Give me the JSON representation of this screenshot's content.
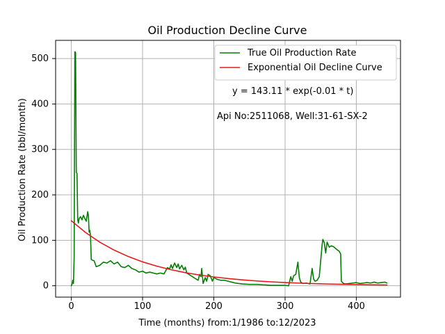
{
  "chart_data": {
    "type": "line",
    "title": "Oil Production Decline Curve",
    "xlabel": "Time (months) from:1/1986 to:12/2023",
    "ylabel": "Oil Production Rate (bbl/month)",
    "xlim": [
      -22,
      462
    ],
    "ylim": [
      -25,
      540
    ],
    "x_ticks": [
      0,
      100,
      200,
      300,
      400
    ],
    "y_ticks": [
      0,
      100,
      200,
      300,
      400,
      500
    ],
    "x_tick_labels": [
      "0",
      "100",
      "200",
      "300",
      "400"
    ],
    "y_tick_labels": [
      "0",
      "100",
      "200",
      "300",
      "400",
      "500"
    ],
    "grid": true,
    "legend_position": "top-right",
    "annotations": {
      "equation": "y = 143.11 * exp(-0.01 * t)",
      "well": "Api No:2511068, Well:31-61-SX-2"
    },
    "series": [
      {
        "name": "True Oil Production Rate",
        "color": "#008000",
        "points": [
          [
            0,
            0
          ],
          [
            1,
            3
          ],
          [
            2,
            12
          ],
          [
            3,
            5
          ],
          [
            4,
            60
          ],
          [
            5,
            515
          ],
          [
            6,
            513
          ],
          [
            7,
            250
          ],
          [
            8,
            247
          ],
          [
            9,
            145
          ],
          [
            10,
            138
          ],
          [
            11,
            148
          ],
          [
            13,
            152
          ],
          [
            15,
            145
          ],
          [
            17,
            155
          ],
          [
            19,
            148
          ],
          [
            21,
            142
          ],
          [
            23,
            163
          ],
          [
            24,
            155
          ],
          [
            25,
            118
          ],
          [
            26,
            122
          ],
          [
            27,
            108
          ],
          [
            28,
            58
          ],
          [
            30,
            56
          ],
          [
            32,
            55
          ],
          [
            35,
            42
          ],
          [
            40,
            45
          ],
          [
            45,
            52
          ],
          [
            50,
            50
          ],
          [
            55,
            55
          ],
          [
            60,
            48
          ],
          [
            65,
            52
          ],
          [
            70,
            42
          ],
          [
            75,
            40
          ],
          [
            80,
            45
          ],
          [
            85,
            38
          ],
          [
            90,
            35
          ],
          [
            95,
            30
          ],
          [
            100,
            32
          ],
          [
            105,
            28
          ],
          [
            110,
            30
          ],
          [
            115,
            28
          ],
          [
            120,
            26
          ],
          [
            125,
            28
          ],
          [
            130,
            26
          ],
          [
            135,
            40
          ],
          [
            138,
            37
          ],
          [
            140,
            46
          ],
          [
            142,
            38
          ],
          [
            145,
            50
          ],
          [
            148,
            40
          ],
          [
            150,
            48
          ],
          [
            152,
            37
          ],
          [
            155,
            45
          ],
          [
            158,
            35
          ],
          [
            160,
            41
          ],
          [
            162,
            28
          ],
          [
            165,
            25
          ],
          [
            168,
            22
          ],
          [
            170,
            20
          ],
          [
            172,
            18
          ],
          [
            175,
            15
          ],
          [
            178,
            12
          ],
          [
            180,
            25
          ],
          [
            182,
            20
          ],
          [
            183,
            38
          ],
          [
            185,
            5
          ],
          [
            188,
            18
          ],
          [
            190,
            10
          ],
          [
            192,
            25
          ],
          [
            195,
            22
          ],
          [
            198,
            10
          ],
          [
            200,
            18
          ],
          [
            205,
            14
          ],
          [
            210,
            12
          ],
          [
            215,
            12
          ],
          [
            220,
            10
          ],
          [
            225,
            8
          ],
          [
            230,
            6
          ],
          [
            235,
            5
          ],
          [
            240,
            4
          ],
          [
            250,
            3
          ],
          [
            260,
            3
          ],
          [
            270,
            2
          ],
          [
            280,
            1
          ],
          [
            290,
            1
          ],
          [
            300,
            1
          ],
          [
            305,
            0
          ],
          [
            308,
            20
          ],
          [
            310,
            10
          ],
          [
            312,
            22
          ],
          [
            315,
            25
          ],
          [
            318,
            52
          ],
          [
            320,
            18
          ],
          [
            322,
            8
          ],
          [
            325,
            5
          ],
          [
            330,
            6
          ],
          [
            335,
            4
          ],
          [
            338,
            38
          ],
          [
            340,
            15
          ],
          [
            342,
            10
          ],
          [
            345,
            12
          ],
          [
            348,
            20
          ],
          [
            350,
            55
          ],
          [
            352,
            90
          ],
          [
            353,
            102
          ],
          [
            355,
            95
          ],
          [
            357,
            72
          ],
          [
            359,
            96
          ],
          [
            362,
            85
          ],
          [
            365,
            88
          ],
          [
            368,
            86
          ],
          [
            371,
            82
          ],
          [
            374,
            78
          ],
          [
            376,
            76
          ],
          [
            378,
            70
          ],
          [
            379,
            10
          ],
          [
            382,
            5
          ],
          [
            385,
            4
          ],
          [
            390,
            5
          ],
          [
            395,
            6
          ],
          [
            400,
            7
          ],
          [
            405,
            5
          ],
          [
            410,
            6
          ],
          [
            415,
            7
          ],
          [
            420,
            6
          ],
          [
            425,
            8
          ],
          [
            430,
            6
          ],
          [
            435,
            7
          ],
          [
            440,
            8
          ],
          [
            443,
            6
          ]
        ]
      },
      {
        "name": "Exponential Oil Decline Curve",
        "color": "#e41a1c",
        "points": [
          [
            0,
            143.1
          ],
          [
            20,
            117.2
          ],
          [
            40,
            95.9
          ],
          [
            60,
            78.5
          ],
          [
            80,
            64.3
          ],
          [
            100,
            52.6
          ],
          [
            120,
            43.1
          ],
          [
            140,
            35.3
          ],
          [
            160,
            28.9
          ],
          [
            180,
            23.6
          ],
          [
            200,
            19.4
          ],
          [
            220,
            15.9
          ],
          [
            240,
            13.0
          ],
          [
            260,
            10.6
          ],
          [
            280,
            8.7
          ],
          [
            300,
            7.1
          ],
          [
            320,
            5.8
          ],
          [
            340,
            4.8
          ],
          [
            360,
            3.9
          ],
          [
            380,
            3.2
          ],
          [
            400,
            2.6
          ],
          [
            420,
            2.1
          ],
          [
            443,
            1.7
          ]
        ]
      }
    ]
  }
}
